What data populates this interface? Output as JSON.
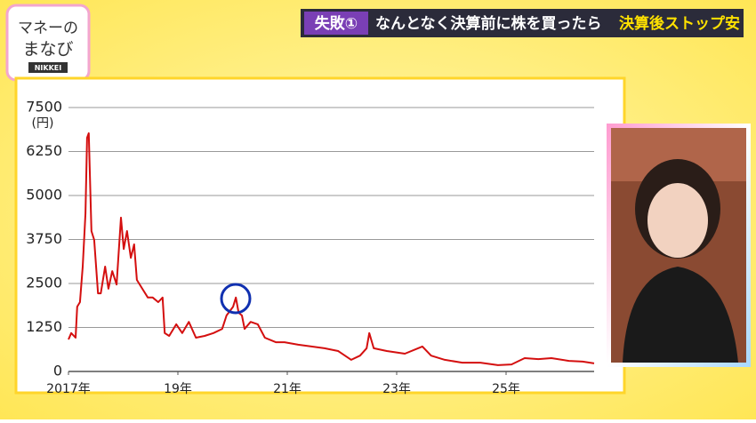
{
  "logo": {
    "line1": "マネーの",
    "line2": "まなび",
    "brand": "NIKKEI"
  },
  "banner": {
    "tag": "失敗①",
    "text": "なんとなく決算前に株を買ったら",
    "highlight": "決算後ストップ安"
  },
  "chart_data": {
    "type": "line",
    "y_unit": "(円)",
    "color": "#d40f0f",
    "grid": true,
    "x": [
      2017.0,
      2017.05,
      2017.13,
      2017.16,
      2017.21,
      2017.26,
      2017.31,
      2017.34,
      2017.37,
      2017.42,
      2017.47,
      2017.54,
      2017.59,
      2017.67,
      2017.73,
      2017.8,
      2017.88,
      2017.96,
      2018.01,
      2018.07,
      2018.14,
      2018.2,
      2018.25,
      2018.35,
      2018.45,
      2018.54,
      2018.64,
      2018.72,
      2018.76,
      2018.84,
      2018.97,
      2019.08,
      2019.2,
      2019.33,
      2019.49,
      2019.65,
      2019.81,
      2019.89,
      2020.01,
      2020.06,
      2020.11,
      2020.17,
      2020.22,
      2020.33,
      2020.46,
      2020.59,
      2020.79,
      2020.95,
      2021.2,
      2021.44,
      2021.68,
      2021.93,
      2022.17,
      2022.33,
      2022.45,
      2022.5,
      2022.58,
      2022.82,
      2023.15,
      2023.39,
      2023.47,
      2023.63,
      2023.88,
      2024.2,
      2024.53,
      2024.85,
      2025.1,
      2025.34,
      2025.59,
      2025.83,
      2026.15,
      2026.4,
      2026.61
    ],
    "values": [
      910,
      1090,
      960,
      1840,
      1970,
      2980,
      4490,
      6640,
      6770,
      3990,
      3740,
      2220,
      2220,
      2980,
      2350,
      2850,
      2470,
      4370,
      3480,
      3990,
      3230,
      3610,
      2600,
      2350,
      2100,
      2100,
      1970,
      2100,
      1090,
      1010,
      1340,
      1090,
      1410,
      960,
      1010,
      1090,
      1210,
      1590,
      1840,
      2100,
      1670,
      1590,
      1210,
      1410,
      1340,
      960,
      830,
      830,
      760,
      710,
      660,
      580,
      330,
      450,
      660,
      1090,
      660,
      580,
      505,
      660,
      710,
      450,
      330,
      250,
      250,
      180,
      200,
      380,
      350,
      380,
      300,
      280,
      230
    ],
    "xlim": [
      2017,
      2026.61
    ],
    "xticks": [
      {
        "value": 2017,
        "label": "2017年"
      },
      {
        "value": 2019,
        "label": "19年"
      },
      {
        "value": 2021,
        "label": "21年"
      },
      {
        "value": 2023,
        "label": "23年"
      },
      {
        "value": 2025,
        "label": "25年"
      }
    ],
    "ylim": [
      0,
      7500
    ],
    "yticks": [
      0,
      1250,
      2500,
      3750,
      5000,
      6250,
      7500
    ]
  }
}
